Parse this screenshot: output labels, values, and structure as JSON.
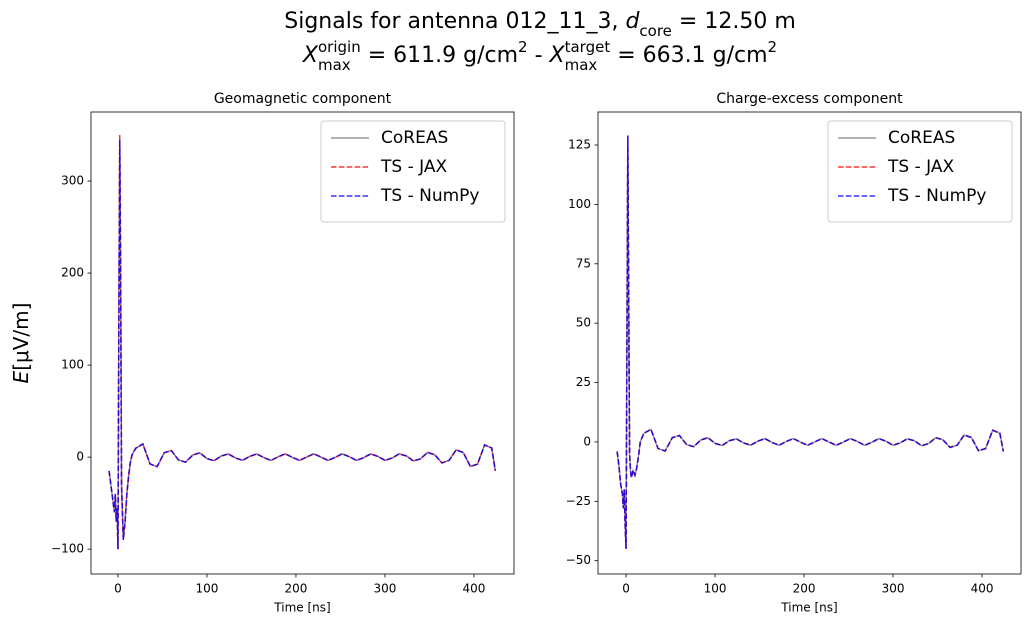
{
  "title": [
    "Signals for antenna 012_11_3, ",
    "d",
    "core",
    " = 12.50 m"
  ],
  "subtitle": [
    "X",
    "origin",
    "max",
    " =  611.9 g/cm",
    "2",
    " -  ",
    "X",
    "target",
    "max",
    " =  663.1 g/cm",
    "2"
  ],
  "chart_data": [
    {
      "type": "line",
      "title": "Geomagnetic component",
      "xlabel": "Time [ns]",
      "ylabel": [
        "E",
        "[μV/m]"
      ],
      "x": [
        -10,
        -8,
        -6,
        -4,
        -3,
        -2,
        -1,
        0,
        1,
        2,
        3,
        4,
        5,
        6,
        8,
        10,
        12,
        14,
        16,
        20,
        28,
        36,
        44,
        52,
        60,
        68,
        76,
        84,
        92,
        100,
        108,
        116,
        124,
        132,
        140,
        148,
        156,
        164,
        172,
        180,
        188,
        196,
        204,
        212,
        220,
        228,
        236,
        244,
        252,
        260,
        268,
        276,
        284,
        292,
        300,
        308,
        316,
        324,
        332,
        340,
        348,
        356,
        364,
        372,
        380,
        388,
        396,
        404,
        412,
        420,
        424
      ],
      "xlim": [
        -30.3,
        445
      ],
      "xticks": [
        0,
        100,
        200,
        300,
        400
      ],
      "ylim": [
        -127,
        375
      ],
      "yticks": [
        {
          "value": -100,
          "label": "−100"
        },
        0,
        100,
        200,
        300
      ],
      "legend": "upper right",
      "series": [
        {
          "name": "CoREAS",
          "color": "#808080",
          "dashed": false,
          "values": [
            -15,
            -30,
            -45,
            -60,
            -40,
            -70,
            -55,
            -100,
            150,
            340,
            200,
            -30,
            -60,
            -90,
            -70,
            -40,
            -20,
            -5,
            3,
            9.7,
            14.3,
            -7.4,
            -10.3,
            4.8,
            7.1,
            -3.1,
            -5.5,
            2.2,
            4.7,
            -1.6,
            -3.9,
            1.2,
            3.5,
            -0.9,
            -3.5,
            0.8,
            3.5,
            -0.6,
            -3.6,
            0.4,
            3.6,
            -0.3,
            -3.6,
            0.1,
            3.6,
            0.1,
            -3.6,
            -0.3,
            3.6,
            0.4,
            -3.6,
            -0.6,
            3.5,
            0.8,
            -3.5,
            -1.0,
            3.5,
            1.3,
            -4.2,
            -1.8,
            5.1,
            2.5,
            -6.3,
            -3.6,
            7.9,
            5.0,
            -10.2,
            -7.6,
            13.3,
            9.9,
            -15
          ]
        },
        {
          "name": "TS - JAX",
          "color": "#ff0000",
          "dashed": true,
          "values": [
            -15,
            -30,
            -45,
            -60,
            -40,
            -70,
            -55,
            -100,
            150,
            350,
            200,
            -30,
            -60,
            -90,
            -70,
            -40,
            -20,
            -5,
            3,
            9.7,
            14.3,
            -7.4,
            -10.3,
            4.8,
            7.1,
            -3.1,
            -5.5,
            2.2,
            4.7,
            -1.6,
            -3.9,
            1.2,
            3.5,
            -0.9,
            -3.5,
            0.8,
            3.5,
            -0.6,
            -3.6,
            0.4,
            3.6,
            -0.3,
            -3.6,
            0.1,
            3.6,
            0.1,
            -3.6,
            -0.3,
            3.6,
            0.4,
            -3.6,
            -0.6,
            3.5,
            0.8,
            -3.5,
            -1.0,
            3.5,
            1.3,
            -4.2,
            -1.8,
            5.1,
            2.5,
            -6.3,
            -3.6,
            7.9,
            5.0,
            -10.2,
            -7.6,
            13.3,
            9.9,
            -15
          ]
        },
        {
          "name": "TS - NumPy",
          "color": "#0000ff",
          "dashed": true,
          "values": [
            -15,
            -30,
            -45,
            -60,
            -40,
            -70,
            -55,
            -100,
            150,
            345,
            200,
            -30,
            -60,
            -90,
            -70,
            -40,
            -20,
            -5,
            3,
            9.7,
            14.3,
            -7.4,
            -10.3,
            4.8,
            7.1,
            -3.1,
            -5.5,
            2.2,
            4.7,
            -1.6,
            -3.9,
            1.2,
            3.5,
            -0.9,
            -3.5,
            0.8,
            3.5,
            -0.6,
            -3.6,
            0.4,
            3.6,
            -0.3,
            -3.6,
            0.1,
            3.6,
            0.1,
            -3.6,
            -0.3,
            3.6,
            0.4,
            -3.6,
            -0.6,
            3.5,
            0.8,
            -3.5,
            -1.0,
            3.5,
            1.3,
            -4.2,
            -1.8,
            5.1,
            2.5,
            -6.3,
            -3.6,
            7.9,
            5.0,
            -10.2,
            -7.6,
            13.3,
            9.9,
            -15
          ]
        }
      ]
    },
    {
      "type": "line",
      "title": "Charge-excess component",
      "xlabel": "Time [ns]",
      "x": [
        -10,
        -8,
        -6,
        -4,
        -3,
        -2,
        -1,
        0,
        1,
        2,
        3,
        4,
        5,
        6,
        8,
        10,
        12,
        14,
        16,
        20,
        28,
        36,
        44,
        52,
        60,
        68,
        76,
        84,
        92,
        100,
        108,
        116,
        124,
        132,
        140,
        148,
        156,
        164,
        172,
        180,
        188,
        196,
        204,
        212,
        220,
        228,
        236,
        244,
        252,
        260,
        268,
        276,
        284,
        292,
        300,
        308,
        316,
        324,
        332,
        340,
        348,
        356,
        364,
        372,
        380,
        388,
        396,
        404,
        412,
        420,
        424
      ],
      "xlim": [
        -31.5,
        443.8
      ],
      "xticks": [
        0,
        100,
        200,
        300,
        400
      ],
      "ylim": [
        -55.6,
        138.9
      ],
      "yticks": [
        {
          "value": -50,
          "label": "−50"
        },
        {
          "value": -25,
          "label": "−25"
        },
        0,
        25,
        50,
        75,
        100,
        125
      ],
      "legend": "upper right",
      "series": [
        {
          "name": "CoREAS",
          "color": "#808080",
          "dashed": false,
          "values": [
            -4,
            -10,
            -18,
            -22,
            -28,
            -20,
            -35,
            -45,
            40,
            125,
            60,
            -5,
            -12,
            -15,
            -12,
            -14,
            -11,
            -6,
            0,
            3.6,
            5.3,
            -2.8,
            -3.8,
            1.8,
            2.7,
            -1.1,
            -2.0,
            0.8,
            1.8,
            -0.6,
            -1.5,
            0.5,
            1.3,
            -0.4,
            -1.4,
            0.3,
            1.4,
            -0.2,
            -1.4,
            0.2,
            1.4,
            -0.1,
            -1.4,
            0,
            1.4,
            0,
            -1.4,
            -0.1,
            1.4,
            0.2,
            -1.4,
            -0.2,
            1.4,
            0.3,
            -1.4,
            -0.4,
            1.3,
            0.5,
            -1.6,
            -0.7,
            1.8,
            0.9,
            -2.3,
            -1.4,
            2.9,
            1.9,
            -3.7,
            -2.8,
            4.9,
            3.7,
            -4
          ]
        },
        {
          "name": "TS - JAX",
          "color": "#ff0000",
          "dashed": true,
          "values": [
            -4,
            -10,
            -18,
            -22,
            -28,
            -20,
            -35,
            -45,
            40,
            129,
            60,
            -5,
            -12,
            -15,
            -12,
            -14,
            -11,
            -6,
            0,
            3.6,
            5.3,
            -2.8,
            -3.8,
            1.8,
            2.7,
            -1.1,
            -2.0,
            0.8,
            1.8,
            -0.6,
            -1.5,
            0.5,
            1.3,
            -0.4,
            -1.4,
            0.3,
            1.4,
            -0.2,
            -1.4,
            0.2,
            1.4,
            -0.1,
            -1.4,
            0,
            1.4,
            0,
            -1.4,
            -0.1,
            1.4,
            0.2,
            -1.4,
            -0.2,
            1.4,
            0.3,
            -1.4,
            -0.4,
            1.3,
            0.5,
            -1.6,
            -0.7,
            1.8,
            0.9,
            -2.3,
            -1.4,
            2.9,
            1.9,
            -3.7,
            -2.8,
            4.9,
            3.7,
            -4
          ]
        },
        {
          "name": "TS - NumPy",
          "color": "#0000ff",
          "dashed": true,
          "values": [
            -4,
            -10,
            -18,
            -22,
            -28,
            -20,
            -35,
            -45,
            40,
            129,
            60,
            -5,
            -12,
            -15,
            -12,
            -14,
            -11,
            -6,
            0,
            3.6,
            5.3,
            -2.8,
            -3.8,
            1.8,
            2.7,
            -1.1,
            -2.0,
            0.8,
            1.8,
            -0.6,
            -1.5,
            0.5,
            1.3,
            -0.4,
            -1.4,
            0.3,
            1.4,
            -0.2,
            -1.4,
            0.2,
            1.4,
            -0.1,
            -1.4,
            0,
            1.4,
            0,
            -1.4,
            -0.1,
            1.4,
            0.2,
            -1.4,
            -0.2,
            1.4,
            0.3,
            -1.4,
            -0.4,
            1.3,
            0.5,
            -1.6,
            -0.7,
            1.8,
            0.9,
            -2.3,
            -1.4,
            2.9,
            1.9,
            -3.7,
            -2.8,
            4.9,
            3.7,
            -4
          ]
        }
      ]
    }
  ]
}
